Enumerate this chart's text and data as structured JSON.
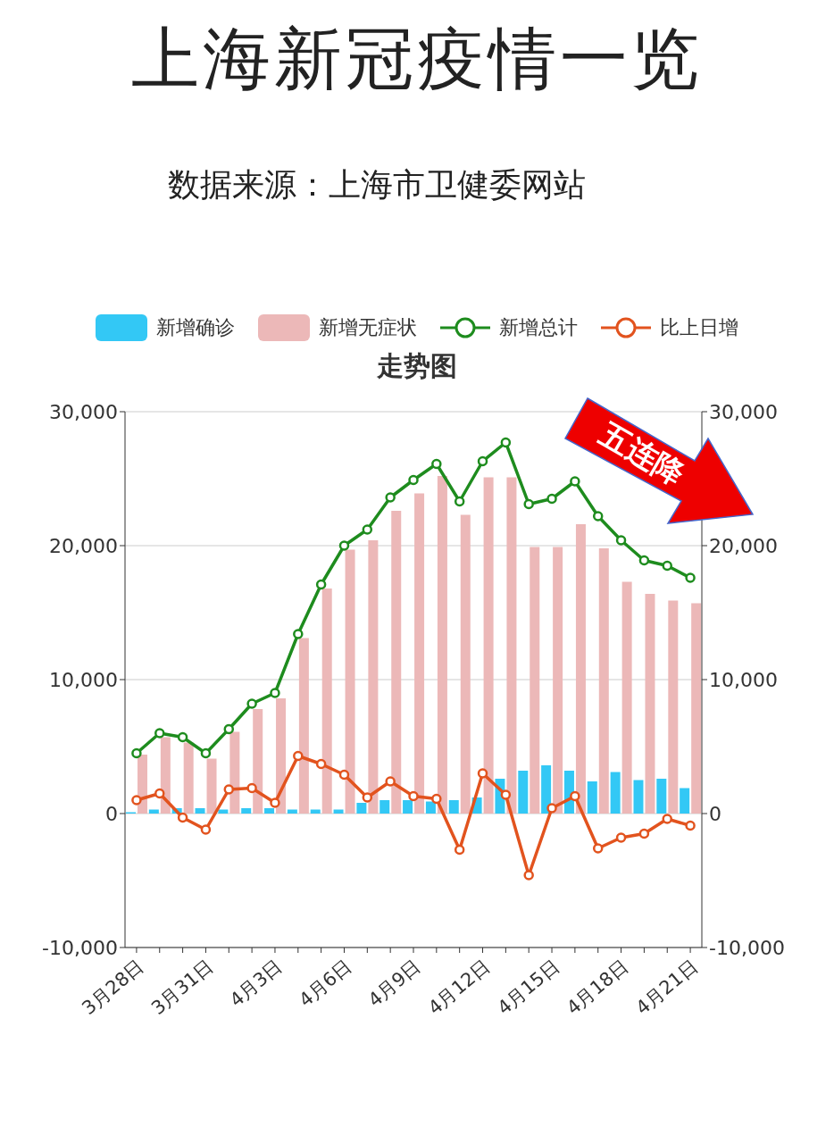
{
  "chart_data": {
    "type": "bar",
    "title": "上海新冠疫情一览",
    "subtitle": "走势图",
    "categories": [
      "3月28日",
      null,
      null,
      "3月31日",
      null,
      null,
      "4月3日",
      null,
      null,
      "4月6日",
      null,
      null,
      "4月9日",
      null,
      null,
      "4月12日",
      null,
      null,
      "4月15日",
      null,
      null,
      "4月18日",
      null,
      null,
      "4月21日"
    ],
    "series": [
      {
        "name": "新增确诊",
        "color": "#33c8f5",
        "values": [
          100,
          300,
          400,
          400,
          300,
          400,
          400,
          300,
          300,
          300,
          800,
          1000,
          1000,
          900,
          1000,
          1200,
          2600,
          3200,
          3600,
          3200,
          2400,
          3100,
          2500,
          2600,
          1900
        ]
      },
      {
        "name": "新增无症状",
        "color": "#ecb8b8",
        "values": [
          4400,
          5700,
          5300,
          4100,
          6100,
          7800,
          8600,
          13100,
          16800,
          19700,
          20400,
          22600,
          23900,
          25200,
          22300,
          25100,
          25100,
          19900,
          19900,
          21600,
          19800,
          17300,
          16400,
          15900,
          15700
        ]
      },
      {
        "name": "新增总计",
        "type": "line",
        "color": "#1e8c1e",
        "values": [
          4500,
          6000,
          5700,
          4500,
          6300,
          8200,
          9000,
          13400,
          17100,
          20000,
          21200,
          23600,
          24900,
          26100,
          23300,
          26300,
          27700,
          23100,
          23500,
          24800,
          22200,
          20400,
          18900,
          18500,
          17600
        ]
      },
      {
        "name": "比上日增",
        "type": "line",
        "color": "#e2531e",
        "values": [
          1000,
          1500,
          -300,
          -1200,
          1800,
          1900,
          800,
          4300,
          3700,
          2900,
          1200,
          2400,
          1300,
          1100,
          -2700,
          3000,
          1400,
          -4600,
          400,
          1300,
          -2600,
          -1800,
          -1500,
          -400,
          -900
        ]
      }
    ],
    "ylim": [
      -10000,
      30000
    ],
    "yticks": [
      {
        "value": -10000,
        "label": "-10,000"
      },
      {
        "value": 0,
        "label": "0"
      },
      {
        "value": 10000,
        "label": "10,000"
      },
      {
        "value": 20000,
        "label": "20,000"
      },
      {
        "value": 30000,
        "label": "30,000"
      }
    ],
    "y2lim": [
      -10000,
      30000
    ],
    "y2ticks": [
      {
        "value": -10000,
        "label": "-10,000"
      },
      {
        "value": 0,
        "label": "0"
      },
      {
        "value": 10000,
        "label": "10,000"
      },
      {
        "value": 20000,
        "label": "20,000"
      },
      {
        "value": 30000,
        "label": "30,000"
      }
    ],
    "grid": "y",
    "legend": "top",
    "marker": "circle",
    "line_style": "solid",
    "annotations": [
      "数据来源：上海市卫健委网站",
      "五连降"
    ]
  }
}
